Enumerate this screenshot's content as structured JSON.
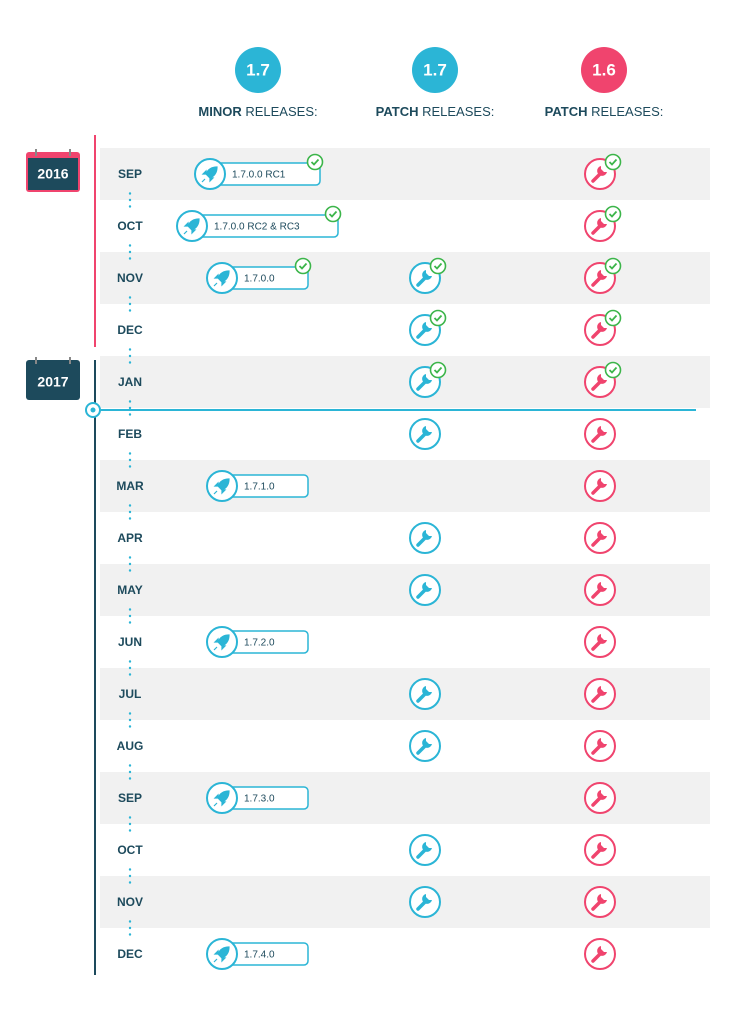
{
  "headers": [
    {
      "version": "1.7",
      "bold": "MINOR",
      "rest": "RELEASES:",
      "color": "#2bb5d6"
    },
    {
      "version": "1.7",
      "bold": "PATCH",
      "rest": "RELEASES:",
      "color": "#2bb5d6"
    },
    {
      "version": "1.6",
      "bold": "PATCH",
      "rest": "RELEASES:",
      "color": "#f0446e"
    }
  ],
  "years": [
    {
      "label": "2016",
      "color": "#f0446e",
      "months": [
        {
          "month": "SEP",
          "minor": {
            "label": "1.7.0.0 RC1",
            "done": true
          },
          "patch_1_7": null,
          "patch_1_6": {
            "done": true
          }
        },
        {
          "month": "OCT",
          "minor": {
            "label": "1.7.0.0 RC2 & RC3",
            "done": true
          },
          "patch_1_7": null,
          "patch_1_6": {
            "done": true
          }
        },
        {
          "month": "NOV",
          "minor": {
            "label": "1.7.0.0",
            "done": true
          },
          "patch_1_7": {
            "done": true
          },
          "patch_1_6": {
            "done": true
          }
        },
        {
          "month": "DEC",
          "minor": null,
          "patch_1_7": {
            "done": true
          },
          "patch_1_6": {
            "done": true
          }
        }
      ]
    },
    {
      "label": "2017",
      "color": "#1d4a5c",
      "months": [
        {
          "month": "JAN",
          "minor": null,
          "patch_1_7": {
            "done": true
          },
          "patch_1_6": {
            "done": true
          }
        },
        {
          "month": "FEB",
          "minor": null,
          "patch_1_7": {
            "done": false
          },
          "patch_1_6": {
            "done": false
          }
        },
        {
          "month": "MAR",
          "minor": {
            "label": "1.7.1.0",
            "done": false
          },
          "patch_1_7": null,
          "patch_1_6": {
            "done": false
          }
        },
        {
          "month": "APR",
          "minor": null,
          "patch_1_7": {
            "done": false
          },
          "patch_1_6": {
            "done": false
          }
        },
        {
          "month": "MAY",
          "minor": null,
          "patch_1_7": {
            "done": false
          },
          "patch_1_6": {
            "done": false
          }
        },
        {
          "month": "JUN",
          "minor": {
            "label": "1.7.2.0",
            "done": false
          },
          "patch_1_7": null,
          "patch_1_6": {
            "done": false
          }
        },
        {
          "month": "JUL",
          "minor": null,
          "patch_1_7": {
            "done": false
          },
          "patch_1_6": {
            "done": false
          }
        },
        {
          "month": "AUG",
          "minor": null,
          "patch_1_7": {
            "done": false
          },
          "patch_1_6": {
            "done": false
          }
        },
        {
          "month": "SEP",
          "minor": {
            "label": "1.7.3.0",
            "done": false
          },
          "patch_1_7": null,
          "patch_1_6": {
            "done": false
          }
        },
        {
          "month": "OCT",
          "minor": null,
          "patch_1_7": {
            "done": false
          },
          "patch_1_6": {
            "done": false
          }
        },
        {
          "month": "NOV",
          "minor": null,
          "patch_1_7": {
            "done": false
          },
          "patch_1_6": {
            "done": false
          }
        },
        {
          "month": "DEC",
          "minor": {
            "label": "1.7.4.0",
            "done": false
          },
          "patch_1_7": null,
          "patch_1_6": {
            "done": false
          }
        }
      ]
    }
  ]
}
